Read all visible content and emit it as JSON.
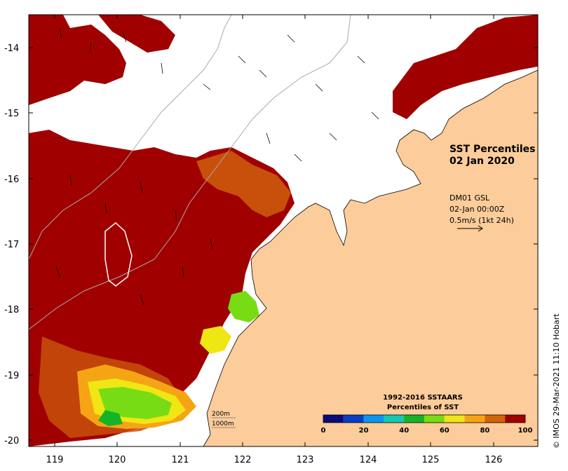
{
  "title": {
    "line1": "SST Percentiles",
    "line2": "02 Jan 2020"
  },
  "current_info": {
    "line1": "DM01 GSL",
    "line2": "02-Jan 00:00Z",
    "line3": "0.5m/s (1kt 24h)"
  },
  "colorbar": {
    "title_line1": "1992-2016 SSTAARS",
    "title_line2": "Percentiles of SST",
    "ticks": [
      "0",
      "20",
      "40",
      "60",
      "80",
      "100"
    ],
    "colors": [
      "#0a0a78",
      "#0a3cc8",
      "#0a96f0",
      "#14c8b4",
      "#14b428",
      "#78dc14",
      "#f0e614",
      "#f5a514",
      "#d2640a",
      "#a00000"
    ]
  },
  "credit": "© IMOS 29-Mar-2021 11:10 Hobart",
  "depth_legend": {
    "line1": "200m",
    "line2": "1000m"
  },
  "axes": {
    "x_ticks": [
      "119",
      "120",
      "121",
      "122",
      "123",
      "124",
      "125",
      "126"
    ],
    "y_ticks": [
      "-14",
      "-15",
      "-16",
      "-17",
      "-18",
      "-19",
      "-20"
    ],
    "xlim": [
      118.6,
      126.7
    ],
    "ylim": [
      -20.1,
      -13.5
    ]
  },
  "colors": {
    "land": "#fccc9a",
    "no_data": "#ffffff",
    "high_percentile": "#a00000"
  }
}
